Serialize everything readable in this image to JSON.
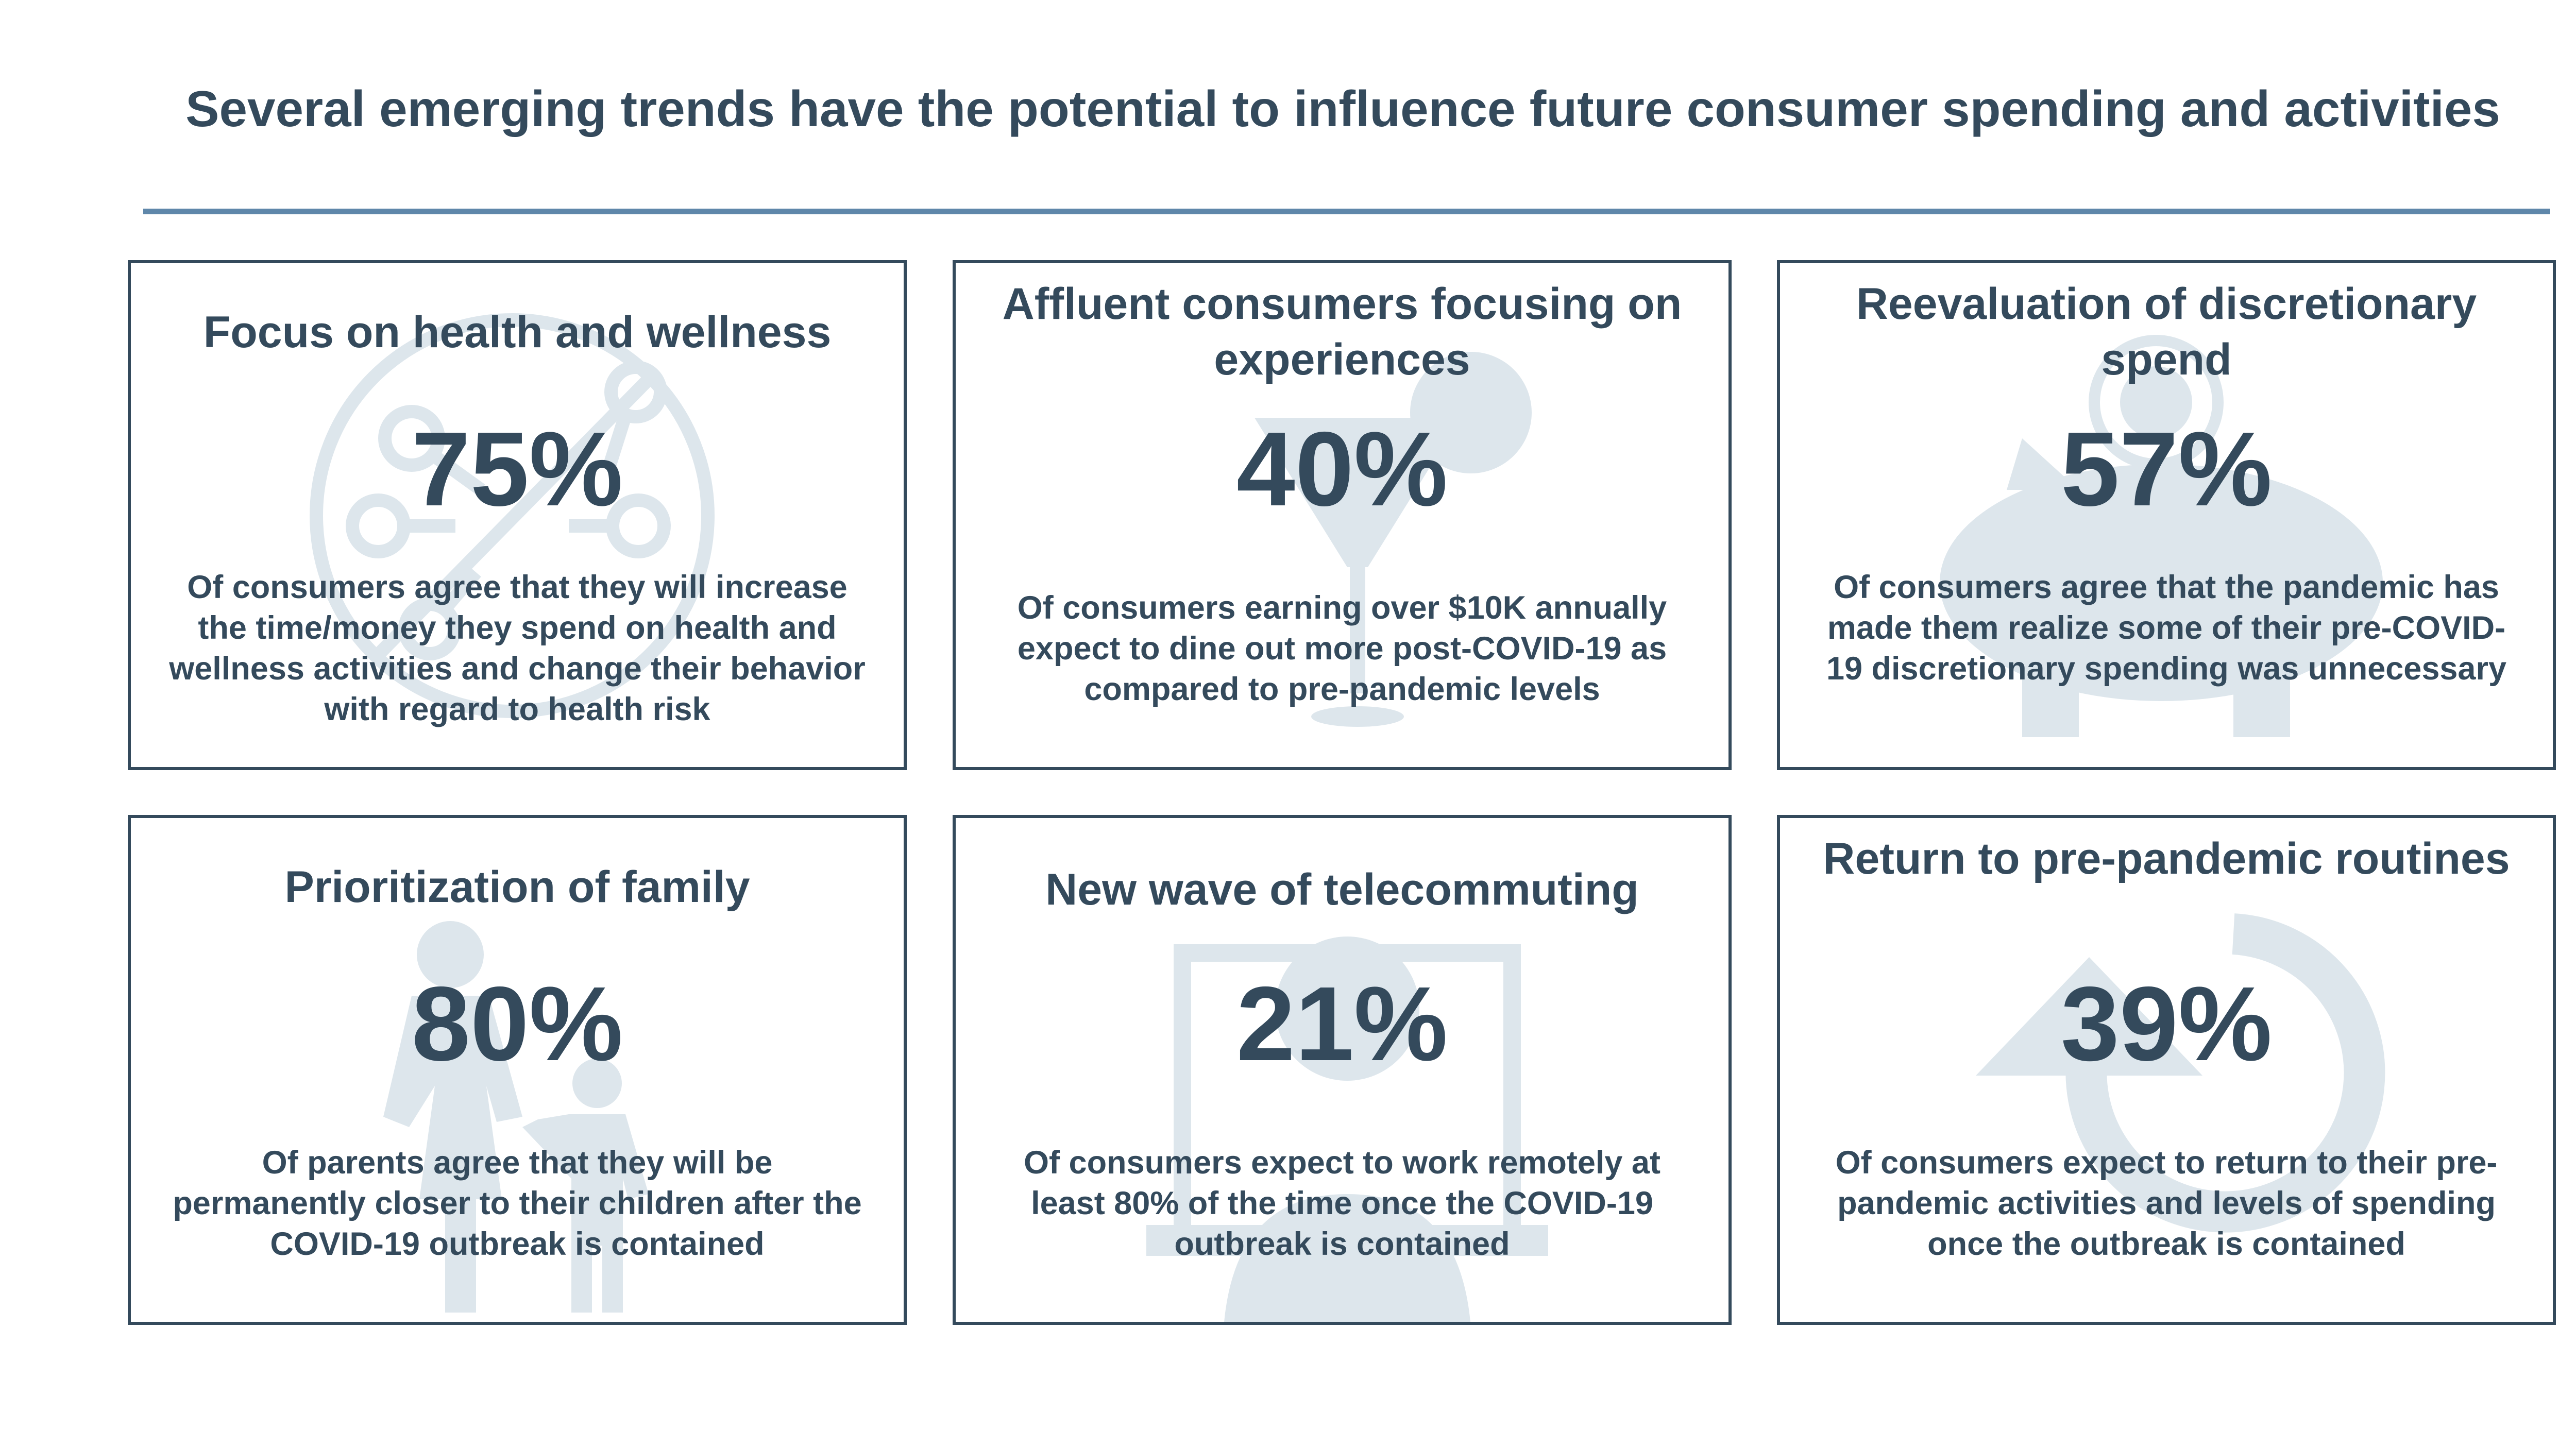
{
  "page": {
    "title": "Several emerging trends have the potential to influence future consumer spending and activities"
  },
  "colors": {
    "text": "#344a5c",
    "rule": "#5f87aa",
    "icon": "#dde6ec"
  },
  "cards": [
    {
      "title": "Focus on health and wellness",
      "value": "75%",
      "description": "Of consumers agree that they will increase the time/money they spend on health and wellness activities and change their behavior with regard to health risk",
      "icon": "virus-prohibited-icon"
    },
    {
      "title": "Affluent consumers focusing on experiences",
      "value": "40%",
      "description": "Of consumers earning over $10K annually expect to dine out more post-COVID-19 as compared to pre-pandemic levels",
      "icon": "cocktail-glass-icon"
    },
    {
      "title": "Reevaluation of discretionary spend",
      "value": "57%",
      "description": "Of consumers agree that the pandemic has made them realize some of their pre-COVID-19 discretionary spending was unnecessary",
      "icon": "piggy-bank-icon"
    },
    {
      "title": "Prioritization of family",
      "value": "80%",
      "description": "Of parents agree that they will be permanently closer to their children after the COVID-19 outbreak is contained",
      "icon": "parent-child-icon"
    },
    {
      "title": "New wave of telecommuting",
      "value": "21%",
      "description": "Of consumers expect to work remotely at least 80% of the time once the COVID-19 outbreak is contained",
      "icon": "remote-worker-icon"
    },
    {
      "title": "Return to pre-pandemic routines",
      "value": "39%",
      "description": "Of consumers expect to return to their pre-pandemic activities and levels of spending once the outbreak is contained",
      "icon": "circular-arrow-icon"
    }
  ]
}
